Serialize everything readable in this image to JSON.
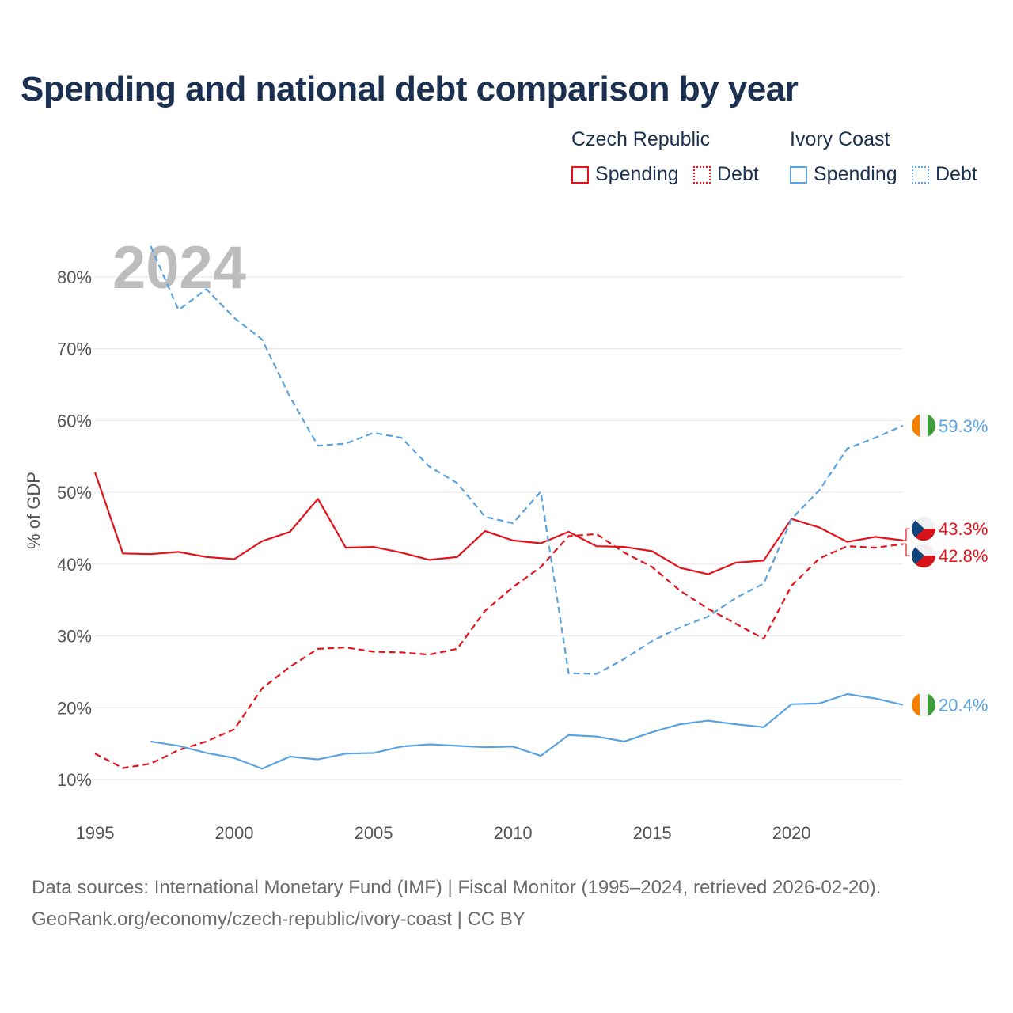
{
  "title": "Spending and national debt comparison by year",
  "legend": {
    "groups": [
      {
        "name": "Czech Republic",
        "color": "#e3121b",
        "items": [
          {
            "label": "Spending",
            "style": "solid"
          },
          {
            "label": "Debt",
            "style": "dotted"
          }
        ]
      },
      {
        "name": "Ivory Coast",
        "color": "#5ba3e0",
        "items": [
          {
            "label": "Spending",
            "style": "solid"
          },
          {
            "label": "Debt",
            "style": "dotted"
          }
        ]
      }
    ]
  },
  "year_overlay": "2024",
  "source_lines": [
    "Data sources: International Monetary Fund (IMF) | Fiscal Monitor (1995–2024, retrieved 2026-02-20).",
    "GeoRank.org/economy/czech-republic/ivory-coast | CC BY"
  ],
  "chart_data": {
    "type": "line",
    "title": "Spending and national debt comparison by year",
    "xlabel": "",
    "ylabel": "% of GDP",
    "xlim": [
      1995,
      2024
    ],
    "ylim": [
      10,
      85
    ],
    "x_ticks": [
      1995,
      2000,
      2005,
      2010,
      2015,
      2020
    ],
    "y_ticks": [
      10,
      20,
      30,
      40,
      50,
      60,
      70,
      80
    ],
    "y_tick_labels": [
      "10%",
      "20%",
      "30%",
      "40%",
      "50%",
      "60%",
      "70%",
      "80%"
    ],
    "grid": "horizontal",
    "series": [
      {
        "name": "Czech Republic Spending",
        "color": "#e3121b",
        "dash": "solid",
        "end_label": "43.3%",
        "flag": "czech",
        "x": [
          1995,
          1996,
          1997,
          1998,
          1999,
          2000,
          2001,
          2002,
          2003,
          2004,
          2005,
          2006,
          2007,
          2008,
          2009,
          2010,
          2011,
          2012,
          2013,
          2014,
          2015,
          2016,
          2017,
          2018,
          2019,
          2020,
          2021,
          2022,
          2023,
          2024
        ],
        "values": [
          52.8,
          41.5,
          41.4,
          41.7,
          41.0,
          40.7,
          43.2,
          44.5,
          49.1,
          42.3,
          42.4,
          41.6,
          40.6,
          41.0,
          44.6,
          43.3,
          42.9,
          44.5,
          42.5,
          42.4,
          41.8,
          39.5,
          38.6,
          40.2,
          40.5,
          46.3,
          45.1,
          43.1,
          43.8,
          43.3
        ]
      },
      {
        "name": "Czech Republic Debt",
        "color": "#e3121b",
        "dash": "dashed",
        "end_label": "42.8%",
        "flag": "czech",
        "x": [
          1995,
          1996,
          1997,
          1998,
          1999,
          2000,
          2001,
          2002,
          2003,
          2004,
          2005,
          2006,
          2007,
          2008,
          2009,
          2010,
          2011,
          2012,
          2013,
          2014,
          2015,
          2016,
          2017,
          2018,
          2019,
          2020,
          2021,
          2022,
          2023,
          2024
        ],
        "values": [
          13.6,
          11.6,
          12.2,
          14.1,
          15.3,
          17.0,
          22.7,
          25.7,
          28.2,
          28.4,
          27.8,
          27.7,
          27.4,
          28.2,
          33.5,
          36.8,
          39.6,
          43.9,
          44.2,
          41.6,
          39.6,
          36.3,
          33.8,
          31.7,
          29.6,
          37.0,
          40.8,
          42.5,
          42.3,
          42.8
        ]
      },
      {
        "name": "Ivory Coast Spending",
        "color": "#5ba3e0",
        "dash": "solid",
        "end_label": "20.4%",
        "flag": "ivory",
        "x": [
          1997,
          1998,
          1999,
          2000,
          2001,
          2002,
          2003,
          2004,
          2005,
          2006,
          2007,
          2008,
          2009,
          2010,
          2011,
          2012,
          2013,
          2014,
          2015,
          2016,
          2017,
          2018,
          2019,
          2020,
          2021,
          2022,
          2023,
          2024
        ],
        "values": [
          15.3,
          14.7,
          13.7,
          13.0,
          11.5,
          13.2,
          12.8,
          13.6,
          13.7,
          14.6,
          14.9,
          14.7,
          14.5,
          14.6,
          13.3,
          16.2,
          16.0,
          15.3,
          16.6,
          17.7,
          18.2,
          17.7,
          17.3,
          20.5,
          20.6,
          21.9,
          21.3,
          20.4
        ]
      },
      {
        "name": "Ivory Coast Debt",
        "color": "#5ba3e0",
        "dash": "dashed",
        "end_label": "59.3%",
        "flag": "ivory",
        "x": [
          1997,
          1998,
          1999,
          2000,
          2001,
          2002,
          2003,
          2004,
          2005,
          2006,
          2007,
          2008,
          2009,
          2010,
          2011,
          2012,
          2013,
          2014,
          2015,
          2016,
          2017,
          2018,
          2019,
          2020,
          2021,
          2022,
          2023,
          2024
        ],
        "values": [
          84.3,
          75.4,
          78.3,
          74.3,
          71.3,
          63.3,
          56.5,
          56.8,
          58.3,
          57.6,
          53.6,
          51.3,
          46.6,
          45.7,
          50.1,
          24.8,
          24.7,
          26.8,
          29.3,
          31.2,
          32.7,
          35.3,
          37.3,
          46.3,
          50.3,
          56.1,
          57.6,
          59.3
        ]
      }
    ]
  }
}
